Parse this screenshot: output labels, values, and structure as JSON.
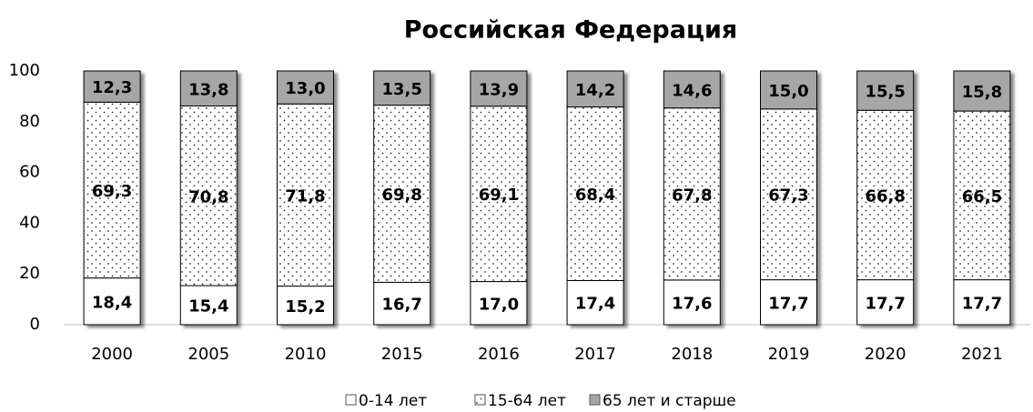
{
  "chart_data": {
    "type": "stacked_bar",
    "title": "Российская Федерация",
    "categories": [
      "2000",
      "2005",
      "2010",
      "2015",
      "2016",
      "2017",
      "2018",
      "2019",
      "2020",
      "2021"
    ],
    "series": [
      {
        "name": "0-14 лет",
        "color": "#ffffff",
        "values": [
          18.4,
          15.4,
          15.2,
          16.7,
          17.0,
          17.4,
          17.6,
          17.7,
          17.7,
          17.7
        ],
        "value_labels": [
          "18,4",
          "15,4",
          "15,2",
          "16,7",
          "17,0",
          "17,4",
          "17,6",
          "17,7",
          "17,7",
          "17,7"
        ]
      },
      {
        "name": "15-64 лет",
        "color": "#ffffff",
        "pattern": "dots",
        "values": [
          69.3,
          70.8,
          71.8,
          69.8,
          69.1,
          68.4,
          67.8,
          67.3,
          66.8,
          66.5
        ],
        "value_labels": [
          "69,3",
          "70,8",
          "71,8",
          "69,8",
          "69,1",
          "68,4",
          "67,8",
          "67,3",
          "66,8",
          "66,5"
        ]
      },
      {
        "name": "65 лет и старше",
        "color": "#a6a6a6",
        "values": [
          12.3,
          13.8,
          13.0,
          13.5,
          13.9,
          14.2,
          14.6,
          15.0,
          15.5,
          15.8
        ],
        "value_labels": [
          "12,3",
          "13,8",
          "13,0",
          "13,5",
          "13,9",
          "14,2",
          "14,6",
          "15,0",
          "15,5",
          "15,8"
        ]
      }
    ],
    "ylim": [
      0,
      100
    ],
    "yticks": [
      0,
      20,
      40,
      60,
      80,
      100
    ],
    "grid": false,
    "legend": "bottom"
  }
}
